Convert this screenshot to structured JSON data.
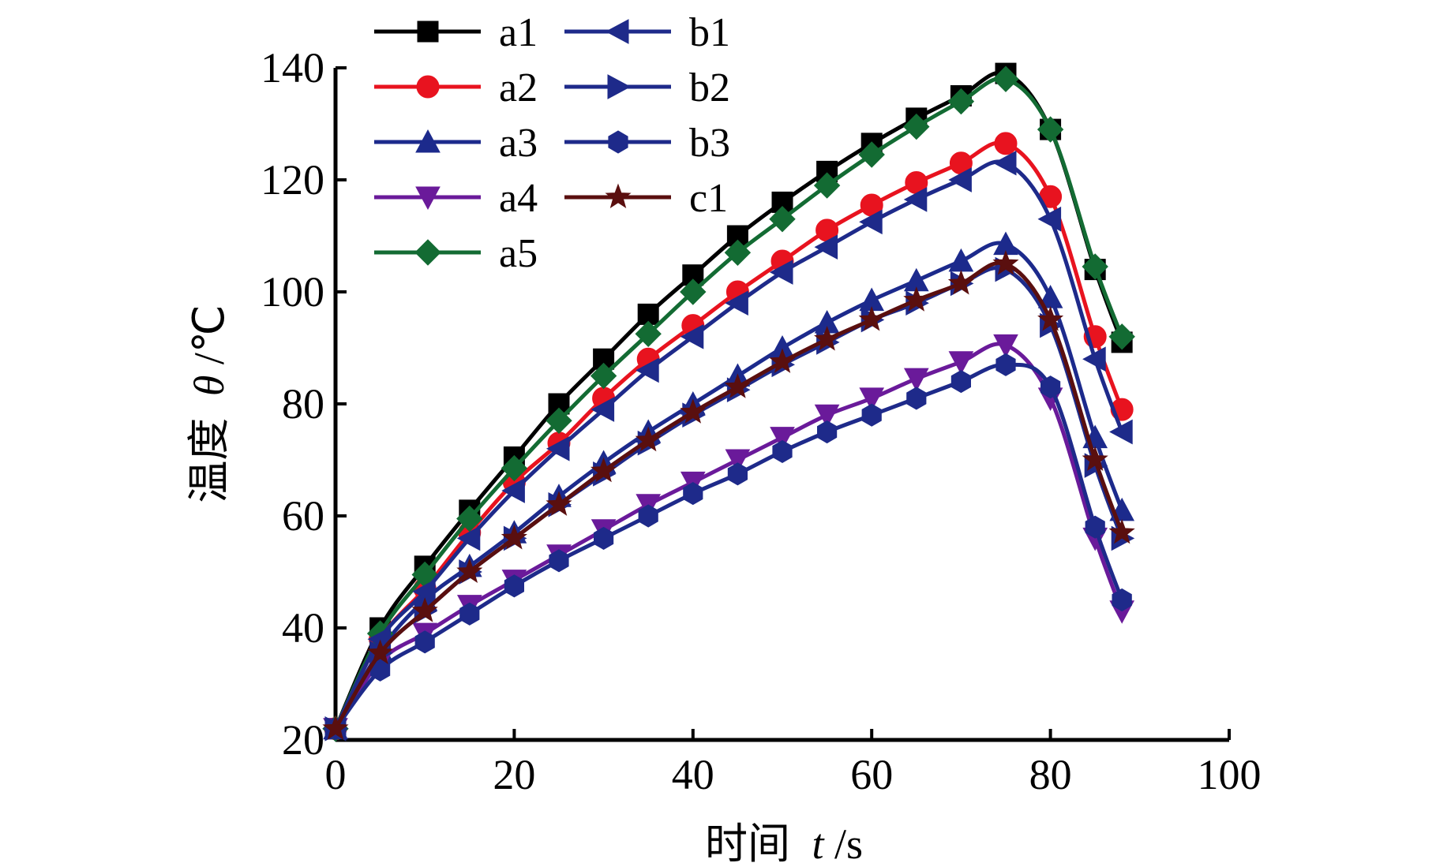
{
  "chart_data": {
    "type": "line",
    "xlabel": {
      "chinese": "时间",
      "symbol": "t",
      "unit": "/s"
    },
    "ylabel": {
      "chinese": "温度",
      "symbol": "θ",
      "unit": "/℃"
    },
    "xlim": [
      0,
      100
    ],
    "ylim": [
      20,
      140
    ],
    "x_ticks": [
      0,
      20,
      40,
      60,
      80,
      100
    ],
    "y_ticks": [
      20,
      40,
      60,
      80,
      100,
      120,
      140
    ],
    "grid": false,
    "legend_position": "top-left, two columns",
    "x": [
      0,
      5,
      10,
      15,
      20,
      25,
      30,
      35,
      40,
      45,
      50,
      55,
      60,
      65,
      70,
      75,
      80,
      85,
      88
    ],
    "series": [
      {
        "name": "a1",
        "color": "#000000",
        "marker": "square",
        "values": [
          22,
          40,
          51,
          61,
          70.5,
          80,
          88,
          96,
          103,
          110,
          116,
          121.5,
          126.5,
          131,
          135,
          139,
          129,
          104,
          91
        ]
      },
      {
        "name": "a2",
        "color": "#e8131f",
        "marker": "circle",
        "values": [
          22,
          38,
          47,
          57,
          66,
          73,
          81,
          88,
          94,
          100,
          105.5,
          111,
          115.5,
          119.5,
          123,
          126.5,
          117,
          92,
          79
        ]
      },
      {
        "name": "a3",
        "color": "#1c2a8c",
        "marker": "triangle-up",
        "values": [
          22,
          36,
          45,
          51,
          57,
          63.5,
          69.5,
          75,
          80,
          85,
          90,
          94.5,
          98.5,
          102,
          105.5,
          108.5,
          99,
          74,
          61
        ]
      },
      {
        "name": "a4",
        "color": "#6a1a9a",
        "marker": "triangle-down",
        "values": [
          22,
          34,
          39,
          44,
          48.5,
          53,
          57.5,
          62,
          66,
          70,
          74,
          78,
          81,
          84.5,
          87.5,
          90.5,
          81,
          56,
          43
        ]
      },
      {
        "name": "a5",
        "color": "#136b33",
        "marker": "diamond",
        "values": [
          22,
          39,
          49.5,
          59.5,
          68.5,
          77,
          85,
          92.5,
          100,
          107,
          113,
          119,
          124.5,
          129.5,
          134,
          138,
          129,
          104.5,
          92
        ]
      },
      {
        "name": "b1",
        "color": "#1e2a8a",
        "marker": "triangle-left",
        "values": [
          22,
          38,
          46.5,
          56,
          64.5,
          72,
          79,
          86,
          92,
          98,
          103.5,
          108,
          112.5,
          116.5,
          120,
          123,
          113,
          88,
          75
        ]
      },
      {
        "name": "b2",
        "color": "#1e2a8a",
        "marker": "triangle-right",
        "values": [
          22,
          35.5,
          43,
          50,
          56,
          62,
          67.5,
          73,
          78,
          82.5,
          87,
          91,
          95,
          98,
          101.5,
          104,
          94,
          69,
          56
        ]
      },
      {
        "name": "b3",
        "color": "#1e2a8a",
        "marker": "hexagon",
        "values": [
          22,
          32.5,
          37.5,
          42.5,
          47.5,
          52,
          56,
          60,
          64,
          67.5,
          71.5,
          75,
          78,
          81,
          84,
          87,
          83,
          58,
          45
        ]
      },
      {
        "name": "c1",
        "color": "#5a0f0f",
        "marker": "star",
        "values": [
          22,
          35.5,
          43,
          50,
          56,
          62,
          68,
          73.5,
          78.5,
          83,
          87.5,
          91.5,
          95,
          98.5,
          101.5,
          105,
          95,
          70,
          57
        ]
      }
    ]
  }
}
